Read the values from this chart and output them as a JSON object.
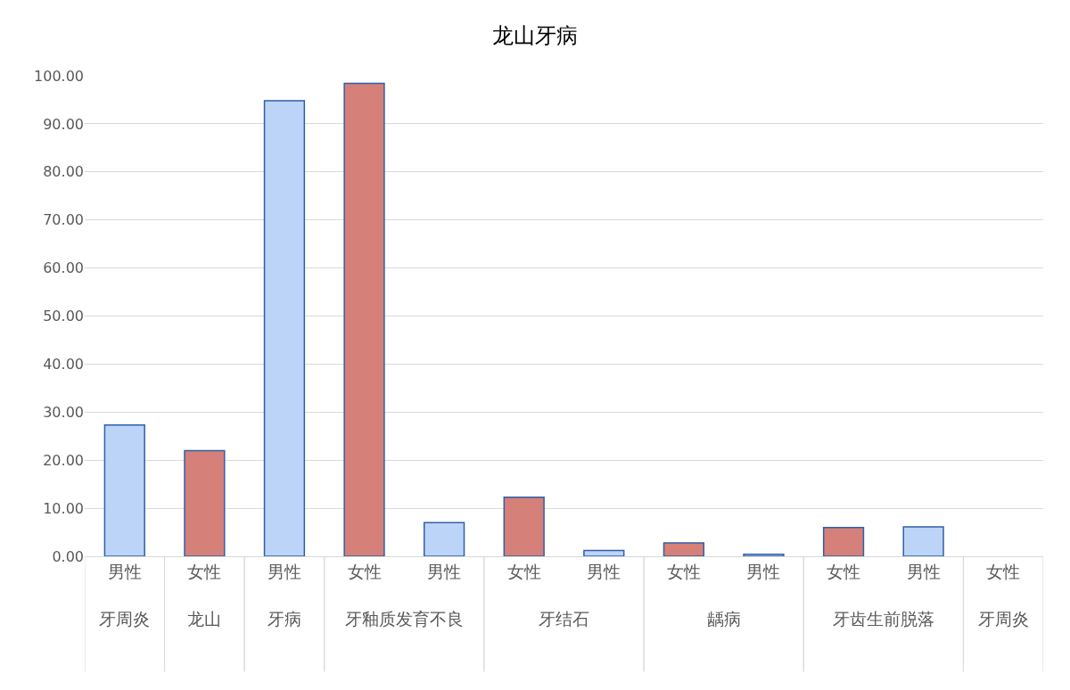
{
  "chart_data": {
    "type": "bar",
    "title": "龙山牙病",
    "categories": [
      [
        "男性",
        "牙周炎"
      ],
      [
        "女性",
        "龙山"
      ],
      [
        "男性",
        "牙病"
      ],
      [
        "女性",
        "牙釉质发育不良"
      ],
      [
        "男性",
        null
      ],
      [
        "女性",
        "牙结石"
      ],
      [
        "男性",
        null
      ],
      [
        "女性",
        "龋病"
      ],
      [
        "男性",
        null
      ],
      [
        "女性",
        "牙齿生前脱落"
      ],
      [
        "男性",
        null
      ],
      [
        "女性",
        "牙周炎"
      ]
    ],
    "values": [
      27.3,
      22.0,
      94.8,
      98.4,
      7.0,
      12.3,
      1.2,
      2.8,
      0.4,
      6.0,
      6.1,
      null
    ],
    "colors": [
      "#bcd4f8",
      "#d6807a",
      "#bcd4f8",
      "#d6807a",
      "#bcd4f8",
      "#d6807a",
      "#bcd4f8",
      "#d6807a",
      "#bcd4f8",
      "#d6807a",
      "#bcd4f8",
      "#d6807a"
    ],
    "ylim": [
      0,
      100
    ],
    "yticks": [
      {
        "value": 0,
        "label": "0.00"
      },
      {
        "value": 10,
        "label": "10.00"
      },
      {
        "value": 20,
        "label": "20.00"
      },
      {
        "value": 30,
        "label": "30.00"
      },
      {
        "value": 40,
        "label": "40.00"
      },
      {
        "value": 50,
        "label": "50.00"
      },
      {
        "value": 60,
        "label": "60.00"
      },
      {
        "value": 70,
        "label": "70.00"
      },
      {
        "value": 80,
        "label": "80.00"
      },
      {
        "value": 90,
        "label": "90.00"
      },
      {
        "value": 100,
        "label": "100.00"
      }
    ],
    "grid": "y",
    "legend": false
  }
}
